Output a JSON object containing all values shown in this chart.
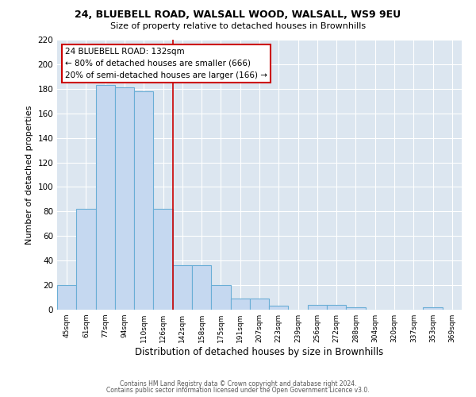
{
  "title1": "24, BLUEBELL ROAD, WALSALL WOOD, WALSALL, WS9 9EU",
  "title2": "Size of property relative to detached houses in Brownhills",
  "xlabel": "Distribution of detached houses by size in Brownhills",
  "ylabel": "Number of detached properties",
  "bin_labels": [
    "45sqm",
    "61sqm",
    "77sqm",
    "94sqm",
    "110sqm",
    "126sqm",
    "142sqm",
    "158sqm",
    "175sqm",
    "191sqm",
    "207sqm",
    "223sqm",
    "239sqm",
    "256sqm",
    "272sqm",
    "288sqm",
    "304sqm",
    "320sqm",
    "337sqm",
    "353sqm",
    "369sqm"
  ],
  "bar_heights": [
    20,
    82,
    183,
    181,
    178,
    82,
    36,
    36,
    20,
    9,
    9,
    3,
    0,
    4,
    4,
    2,
    0,
    0,
    0,
    2,
    0
  ],
  "bar_color": "#c5d8f0",
  "bar_edge_color": "#6aaed6",
  "vline_x": 5.5,
  "vline_color": "#cc0000",
  "ylim": [
    0,
    220
  ],
  "yticks": [
    0,
    20,
    40,
    60,
    80,
    100,
    120,
    140,
    160,
    180,
    200,
    220
  ],
  "annotation_title": "24 BLUEBELL ROAD: 132sqm",
  "annotation_line1": "← 80% of detached houses are smaller (666)",
  "annotation_line2": "20% of semi-detached houses are larger (166) →",
  "annotation_box_color": "#ffffff",
  "annotation_box_edge": "#cc0000",
  "footnote1": "Contains HM Land Registry data © Crown copyright and database right 2024.",
  "footnote2": "Contains public sector information licensed under the Open Government Licence v3.0.",
  "fig_bg_color": "#ffffff",
  "plot_bg_color": "#dce6f0"
}
